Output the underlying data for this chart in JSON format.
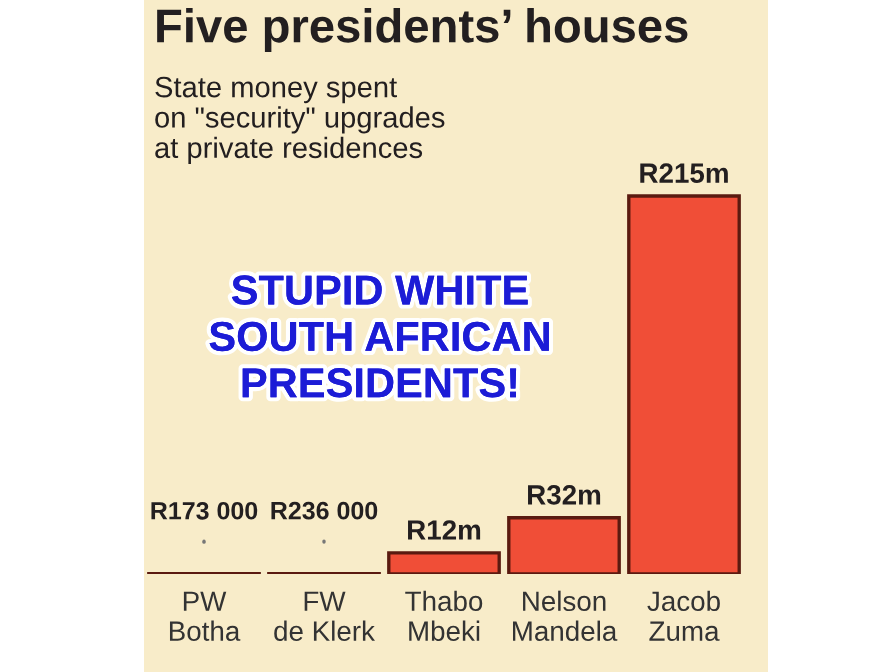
{
  "chart_data": {
    "type": "bar",
    "title": "Five presidents’ houses",
    "subtitle": "State money spent\non \"security\" upgrades\nat private residences",
    "categories": [
      "PW\nBotha",
      "FW\nde Klerk",
      "Thabo\nMbeki",
      "Nelson\nMandela",
      "Jacob\nZuma"
    ],
    "values": [
      173000,
      236000,
      12000000,
      32000000,
      215000000
    ],
    "value_labels": [
      "R173 000",
      "R236 000",
      "R12m",
      "R32m",
      "R215m"
    ],
    "color": "#f04e37",
    "annotations": [
      "STUPID WHITE\nSOUTH AFRICAN\nPRESIDENTS!"
    ]
  }
}
